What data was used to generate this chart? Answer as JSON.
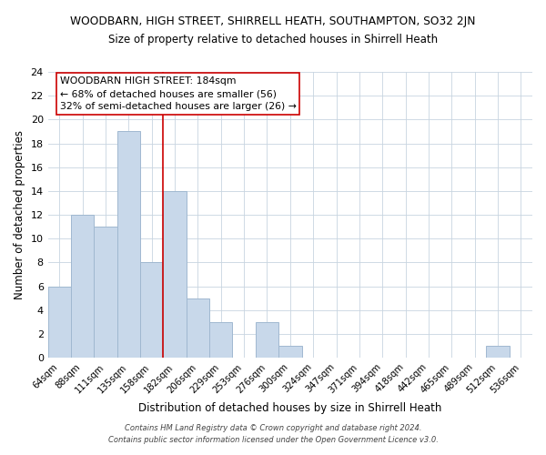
{
  "title": "WOODBARN, HIGH STREET, SHIRRELL HEATH, SOUTHAMPTON, SO32 2JN",
  "subtitle": "Size of property relative to detached houses in Shirrell Heath",
  "xlabel": "Distribution of detached houses by size in Shirrell Heath",
  "ylabel": "Number of detached properties",
  "bar_color": "#c8d8ea",
  "bar_edge_color": "#a0b8d0",
  "bin_labels": [
    "64sqm",
    "88sqm",
    "111sqm",
    "135sqm",
    "158sqm",
    "182sqm",
    "206sqm",
    "229sqm",
    "253sqm",
    "276sqm",
    "300sqm",
    "324sqm",
    "347sqm",
    "371sqm",
    "394sqm",
    "418sqm",
    "442sqm",
    "465sqm",
    "489sqm",
    "512sqm",
    "536sqm"
  ],
  "counts": [
    6,
    12,
    11,
    19,
    8,
    14,
    5,
    3,
    0,
    3,
    1,
    0,
    0,
    0,
    0,
    0,
    0,
    0,
    0,
    1,
    0
  ],
  "vline_x_index": 5,
  "vline_color": "#cc0000",
  "ylim": [
    0,
    24
  ],
  "yticks": [
    0,
    2,
    4,
    6,
    8,
    10,
    12,
    14,
    16,
    18,
    20,
    22,
    24
  ],
  "annotation_box_text": "WOODBARN HIGH STREET: 184sqm\n← 68% of detached houses are smaller (56)\n32% of semi-detached houses are larger (26) →",
  "footer_line1": "Contains HM Land Registry data © Crown copyright and database right 2024.",
  "footer_line2": "Contains public sector information licensed under the Open Government Licence v3.0.",
  "bg_color": "#ffffff",
  "grid_color": "#c8d4e0"
}
